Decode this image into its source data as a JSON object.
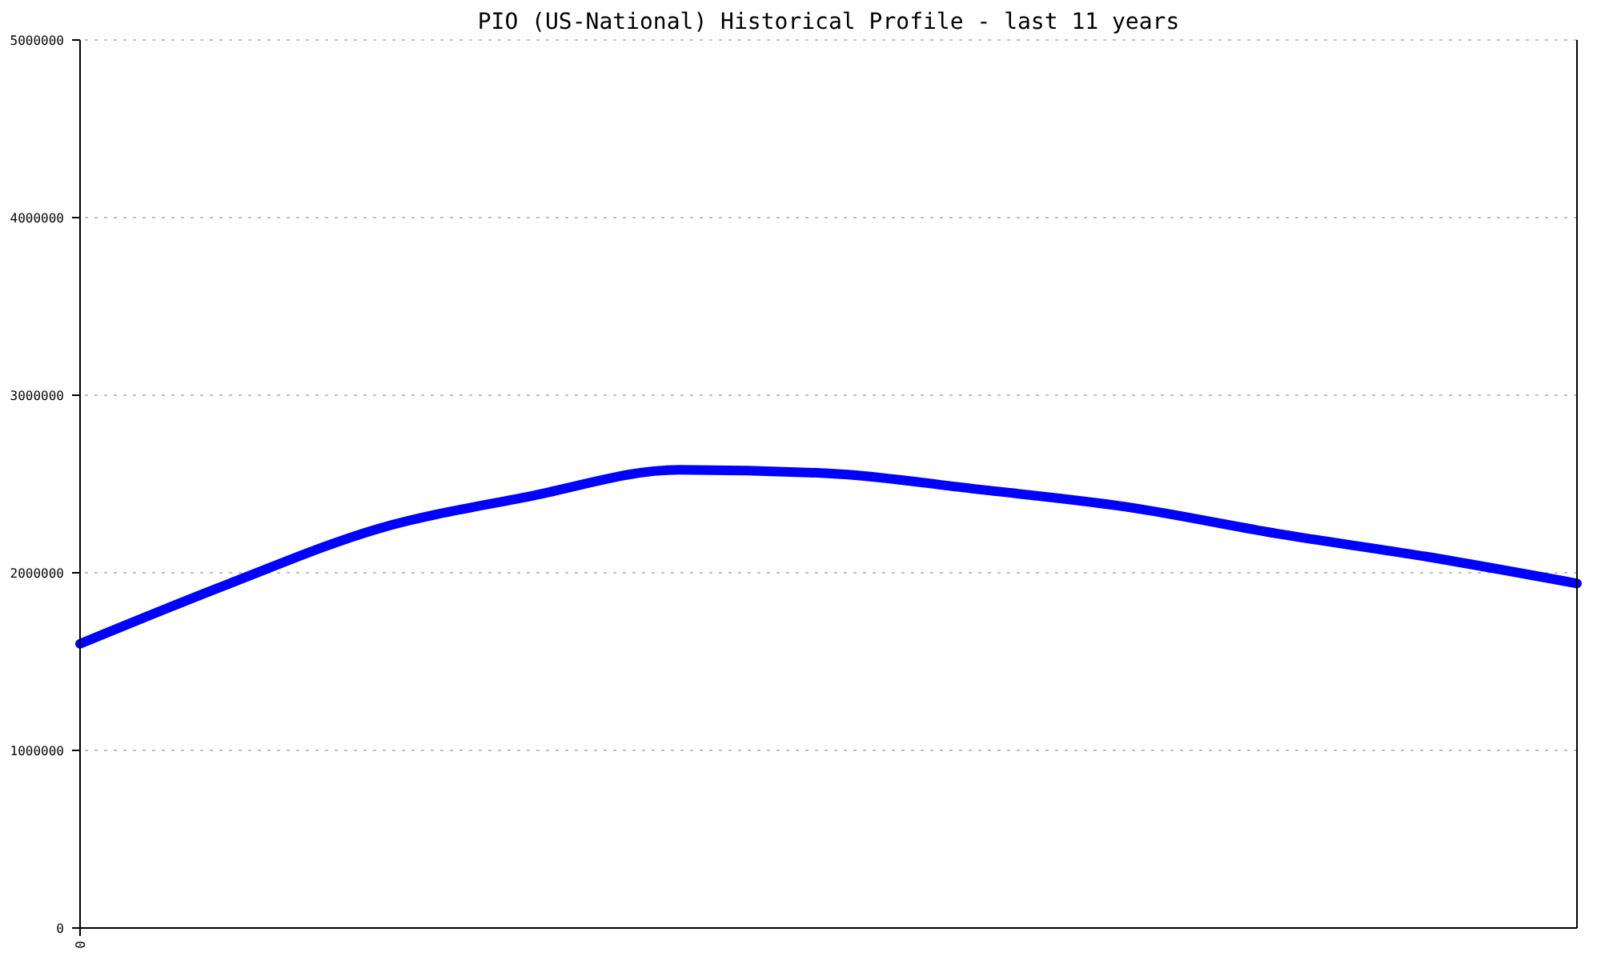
{
  "chart_data": {
    "type": "line",
    "title": "PIO (US-National) Historical Profile - last 11 years",
    "categories": [
      "0",
      null,
      null,
      null,
      null,
      null,
      null,
      null,
      null,
      null,
      null
    ],
    "series": [
      {
        "color": "#0000ff",
        "values": [
          1600000,
          1940000,
          2250000,
          2430000,
          2580000,
          2560000,
          2470000,
          2370000,
          2220000,
          2090000,
          1940000
        ]
      }
    ],
    "ylim": [
      0,
      5000000
    ],
    "yticks": [
      0,
      1000000,
      2000000,
      3000000,
      4000000,
      5000000
    ],
    "grid": "y",
    "marker": "none",
    "line_style": "solid"
  }
}
